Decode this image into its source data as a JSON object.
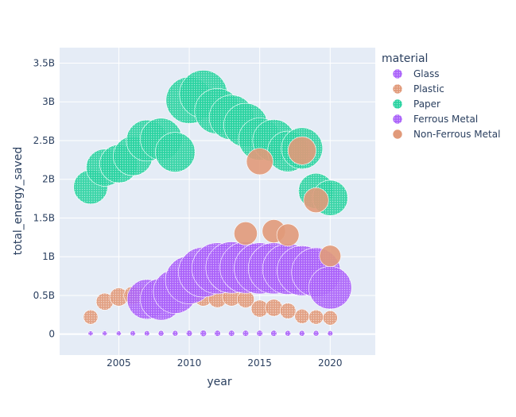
{
  "chart_data": {
    "type": "scatter",
    "xlabel": "year",
    "ylabel": "total_energy_saved",
    "xlim": [
      2000.8,
      2023.2
    ],
    "ylim": [
      -0.27,
      3.7
    ],
    "y_unit": "B",
    "x_ticks": [
      2005,
      2010,
      2015,
      2020
    ],
    "y_ticks": [
      0,
      0.5,
      1,
      1.5,
      2,
      2.5,
      3,
      3.5
    ],
    "y_tick_labels": [
      "0",
      "0.5B",
      "1B",
      "1.5B",
      "2B",
      "2.5B",
      "3B",
      "3.5B"
    ],
    "grid": true,
    "legend": {
      "title": "material",
      "placement": "right"
    },
    "series": [
      {
        "name": "Glass",
        "color": "#ab63fa",
        "style": "dotted",
        "points": [
          [
            2003,
            0.01
          ],
          [
            2004,
            0.01
          ],
          [
            2005,
            0.01
          ],
          [
            2006,
            0.01
          ],
          [
            2007,
            0.01
          ],
          [
            2008,
            0.01
          ],
          [
            2009,
            0.01
          ],
          [
            2010,
            0.01
          ],
          [
            2011,
            0.01
          ],
          [
            2012,
            0.01
          ],
          [
            2013,
            0.01
          ],
          [
            2014,
            0.01
          ],
          [
            2015,
            0.01
          ],
          [
            2016,
            0.01
          ],
          [
            2017,
            0.01
          ],
          [
            2018,
            0.01
          ],
          [
            2019,
            0.01
          ],
          [
            2020,
            0.01
          ]
        ],
        "sizes": [
          0.006,
          0.006,
          0.006,
          0.007,
          0.007,
          0.008,
          0.008,
          0.009,
          0.01,
          0.009,
          0.009,
          0.009,
          0.009,
          0.009,
          0.008,
          0.008,
          0.008,
          0.007
        ]
      },
      {
        "name": "Plastic",
        "color": "#e19a7a",
        "style": "dotted",
        "points": [
          [
            2003,
            0.22
          ],
          [
            2004,
            0.42
          ],
          [
            2005,
            0.48
          ],
          [
            2006,
            0.5
          ],
          [
            2007,
            0.52
          ],
          [
            2008,
            0.52
          ],
          [
            2009,
            0.5
          ],
          [
            2010,
            0.49
          ],
          [
            2011,
            0.48
          ],
          [
            2012,
            0.46
          ],
          [
            2013,
            0.48
          ],
          [
            2014,
            0.45
          ],
          [
            2015,
            0.33
          ],
          [
            2016,
            0.34
          ],
          [
            2017,
            0.3
          ],
          [
            2018,
            0.23
          ],
          [
            2019,
            0.22
          ],
          [
            2020,
            0.21
          ]
        ],
        "sizes": [
          0.05,
          0.07,
          0.08,
          0.08,
          0.08,
          0.08,
          0.08,
          0.08,
          0.08,
          0.08,
          0.08,
          0.07,
          0.07,
          0.07,
          0.06,
          0.05,
          0.05,
          0.05
        ]
      },
      {
        "name": "Paper",
        "color": "#2ad3a1",
        "style": "dotted",
        "points": [
          [
            2003,
            1.9
          ],
          [
            2004,
            2.15
          ],
          [
            2005,
            2.2
          ],
          [
            2006,
            2.3
          ],
          [
            2007,
            2.5
          ],
          [
            2008,
            2.52
          ],
          [
            2009,
            2.35
          ],
          [
            2010,
            3.02
          ],
          [
            2011,
            3.1
          ],
          [
            2012,
            2.88
          ],
          [
            2013,
            2.8
          ],
          [
            2014,
            2.7
          ],
          [
            2015,
            2.52
          ],
          [
            2016,
            2.5
          ],
          [
            2017,
            2.36
          ],
          [
            2018,
            2.4
          ],
          [
            2019,
            1.85
          ],
          [
            2020,
            1.76
          ]
        ],
        "sizes": [
          0.28,
          0.33,
          0.35,
          0.37,
          0.41,
          0.42,
          0.38,
          0.52,
          0.55,
          0.5,
          0.48,
          0.46,
          0.43,
          0.43,
          0.4,
          0.41,
          0.3,
          0.3
        ]
      },
      {
        "name": "Ferrous Metal",
        "color": "#ab63fa",
        "style": "dotted",
        "points": [
          [
            2007,
            0.45
          ],
          [
            2008,
            0.45
          ],
          [
            2009,
            0.55
          ],
          [
            2010,
            0.7
          ],
          [
            2011,
            0.8
          ],
          [
            2012,
            0.85
          ],
          [
            2013,
            0.86
          ],
          [
            2014,
            0.86
          ],
          [
            2015,
            0.85
          ],
          [
            2016,
            0.85
          ],
          [
            2017,
            0.84
          ],
          [
            2018,
            0.82
          ],
          [
            2019,
            0.8
          ],
          [
            2020,
            0.6
          ]
        ],
        "sizes": [
          0.38,
          0.42,
          0.46,
          0.55,
          0.6,
          0.63,
          0.64,
          0.64,
          0.63,
          0.63,
          0.62,
          0.6,
          0.58,
          0.44
        ]
      },
      {
        "name": "Non-Ferrous Metal",
        "color": "#e19a7a",
        "style": "solid",
        "points": [
          [
            2014,
            1.3
          ],
          [
            2015,
            2.23
          ],
          [
            2016,
            1.33
          ],
          [
            2017,
            1.28
          ],
          [
            2018,
            2.37
          ],
          [
            2019,
            1.73
          ],
          [
            2020,
            1.01
          ]
        ],
        "sizes": [
          0.13,
          0.17,
          0.13,
          0.12,
          0.19,
          0.15,
          0.11
        ]
      }
    ]
  }
}
